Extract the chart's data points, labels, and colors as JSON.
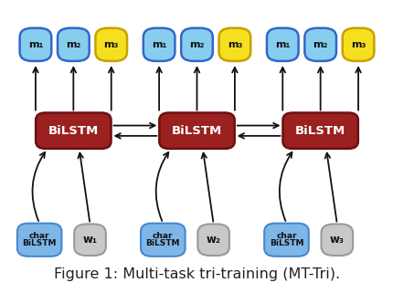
{
  "figure_caption": "Figure 1: Multi-task tri-training (MT-Tri).",
  "caption_fontsize": 11.5,
  "bg_color": "#ffffff",
  "bilstm_color": "#9B2020",
  "bilstm_text_color": "#ffffff",
  "bilstm_label": "BiLSTM",
  "char_bilstm_color": "#7EB6E8",
  "char_bilstm_text_color": "#111111",
  "char_bilstm_label": [
    "char",
    "BiLSTM"
  ],
  "w_color": "#C8C8C8",
  "w_text_color": "#111111",
  "m_blue_color": "#87CEEE",
  "m_yellow_color": "#F5E020",
  "m_blue_border": "#3366CC",
  "m_yellow_border": "#C8A000",
  "m_labels": [
    "m₁",
    "m₂",
    "m₃"
  ],
  "w_labels": [
    "w₁",
    "w₂",
    "w₃"
  ],
  "arrow_color": "#111111",
  "caption_color": "#222222"
}
